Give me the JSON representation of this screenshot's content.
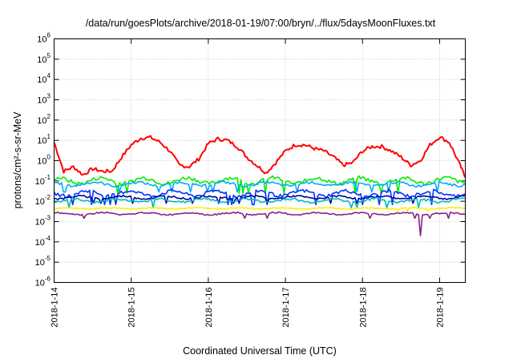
{
  "chart_data": {
    "type": "line",
    "title": "/data/run/goesPlots/archive/2018-01-19/07:00/bryn/../flux/5daysMoonFluxes.txt",
    "xlabel": "Coordinated Universal Time (UTC)",
    "ylabel": "protons/cm²-s-sr-MeV",
    "y_scale": "log",
    "ylim": [
      1e-06,
      1000000.0
    ],
    "xlim": [
      "2018-01-14T00:00",
      "2018-01-19T08:00"
    ],
    "x_ticks": [
      "2018-1-14",
      "2018-1-15",
      "2018-1-16",
      "2018-1-17",
      "2018-1-18",
      "2018-1-19"
    ],
    "y_ticks": [
      {
        "base": "10",
        "exp": "-6"
      },
      {
        "base": "10",
        "exp": "-5"
      },
      {
        "base": "10",
        "exp": "-4"
      },
      {
        "base": "10",
        "exp": "-3"
      },
      {
        "base": "10",
        "exp": "-2"
      },
      {
        "base": "10",
        "exp": "-1"
      },
      {
        "base": "10",
        "exp": "0"
      },
      {
        "base": "10",
        "exp": "1"
      },
      {
        "base": "10",
        "exp": "2"
      },
      {
        "base": "10",
        "exp": "3"
      },
      {
        "base": "10",
        "exp": "4"
      },
      {
        "base": "10",
        "exp": "5"
      },
      {
        "base": "10",
        "exp": "6"
      }
    ],
    "grid": true,
    "legend": "none",
    "series": [
      {
        "color": "#ff0000",
        "points": [
          [
            "2018-01-14T00:00",
            8
          ],
          [
            "2018-01-14T03:00",
            0.3
          ],
          [
            "2018-01-14T06:00",
            0.5
          ],
          [
            "2018-01-14T09:00",
            0.2
          ],
          [
            "2018-01-14T12:00",
            0.4
          ],
          [
            "2018-01-14T15:00",
            0.3
          ],
          [
            "2018-01-14T18:00",
            0.3
          ],
          [
            "2018-01-14T21:00",
            1.5
          ],
          [
            "2018-01-15T00:00",
            6
          ],
          [
            "2018-01-15T03:00",
            13
          ],
          [
            "2018-01-15T06:00",
            14
          ],
          [
            "2018-01-15T09:00",
            8
          ],
          [
            "2018-01-15T12:00",
            3
          ],
          [
            "2018-01-15T15:00",
            0.6
          ],
          [
            "2018-01-15T18:00",
            0.5
          ],
          [
            "2018-01-15T21:00",
            1.2
          ],
          [
            "2018-01-16T00:00",
            7
          ],
          [
            "2018-01-16T03:00",
            12
          ],
          [
            "2018-01-16T06:00",
            10
          ],
          [
            "2018-01-16T09:00",
            5
          ],
          [
            "2018-01-16T12:00",
            1.5
          ],
          [
            "2018-01-16T15:00",
            0.6
          ],
          [
            "2018-01-16T18:00",
            0.25
          ],
          [
            "2018-01-16T21:00",
            0.8
          ],
          [
            "2018-01-17T00:00",
            3
          ],
          [
            "2018-01-17T03:00",
            6
          ],
          [
            "2018-01-17T06:00",
            6
          ],
          [
            "2018-01-17T09:00",
            4
          ],
          [
            "2018-01-17T12:00",
            3
          ],
          [
            "2018-01-17T15:00",
            1.5
          ],
          [
            "2018-01-17T18:00",
            0.6
          ],
          [
            "2018-01-17T21:00",
            0.8
          ],
          [
            "2018-01-18T00:00",
            3
          ],
          [
            "2018-01-18T03:00",
            5
          ],
          [
            "2018-01-18T06:00",
            5
          ],
          [
            "2018-01-18T09:00",
            3
          ],
          [
            "2018-01-18T12:00",
            1.5
          ],
          [
            "2018-01-18T15:00",
            0.6
          ],
          [
            "2018-01-18T18:00",
            1
          ],
          [
            "2018-01-18T21:00",
            6
          ],
          [
            "2018-01-19T00:00",
            15
          ],
          [
            "2018-01-19T03:00",
            8
          ],
          [
            "2018-01-19T06:00",
            0.8
          ],
          [
            "2018-01-19T08:00",
            0.15
          ]
        ]
      },
      {
        "color": "#00ee00",
        "values_typical": [
          0.06,
          0.18
        ],
        "note_range": "daily noisy band"
      },
      {
        "color": "#00aaff",
        "values_typical": [
          0.05,
          0.1
        ]
      },
      {
        "color": "#0033ff",
        "values_typical": [
          0.015,
          0.04
        ]
      },
      {
        "color": "#0000aa",
        "values_typical": [
          0.012,
          0.02
        ]
      },
      {
        "color": "#00bbbb",
        "values_typical": [
          0.008,
          0.015
        ]
      },
      {
        "color": "#ffee00",
        "values_typical": [
          0.004,
          0.005
        ]
      },
      {
        "color": "#882288",
        "values_typical": [
          0.002,
          0.003
        ],
        "dip": [
          "2018-01-18T18:00",
          0.0002
        ]
      }
    ]
  }
}
